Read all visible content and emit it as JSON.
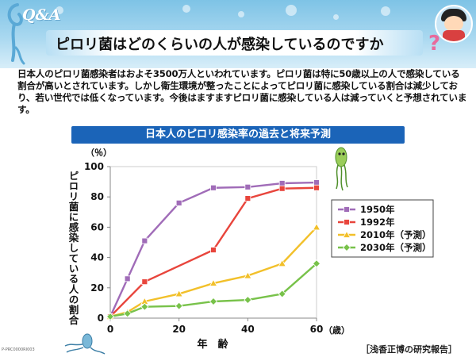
{
  "header": {
    "logo_text": "Q&A",
    "title": "ピロリ菌はどのくらいの人が感染しているのですか",
    "question_mark": "?"
  },
  "intro": {
    "text": "日本人のピロリ菌感染者はおよそ3500万人といわれています。ピロリ菌は特に50歳以上の人で感染している割合が高いとされています。しかし衛生環境が整ったことによってピロリ菌に感染している割合は減少しており、若い世代では低くなっています。今後はますますピロリ菌に感染している人は減っていくと予想されています。"
  },
  "source_note": "［浅香正博の研究報告］",
  "footer_code": "P-PRC0000RI003",
  "colors": {
    "header_blue": "#7ec3e6",
    "banner_blue": "#1b64b8",
    "series_1950": "#a06cb8",
    "series_1992": "#e8453c",
    "series_2010": "#f2c02a",
    "series_2030": "#78c24a"
  },
  "chart_data": {
    "type": "line",
    "title": "日本人のピロリ感染率の過去と将来予測",
    "xlabel": "年　齢",
    "x_unit": "（歳）",
    "ylabel": "ピロリ菌に感染している人の割合",
    "y_unit": "（％）",
    "xlim": [
      0,
      60
    ],
    "ylim": [
      0,
      100
    ],
    "x_ticks": [
      0,
      20,
      40,
      60
    ],
    "y_ticks": [
      0,
      20,
      40,
      60,
      80,
      100
    ],
    "grid": false,
    "legend_position": "right",
    "series": [
      {
        "name": "1950年",
        "color": "#a06cb8",
        "marker": "square",
        "x": [
          0,
          5,
          10,
          20,
          30,
          40,
          50,
          60
        ],
        "y": [
          1,
          26,
          51,
          76,
          86,
          86.5,
          89,
          89.5
        ]
      },
      {
        "name": "1992年",
        "color": "#e8453c",
        "marker": "square",
        "x": [
          0,
          10,
          30,
          40,
          50,
          60
        ],
        "y": [
          1,
          24,
          45,
          79,
          85.5,
          86
        ]
      },
      {
        "name": "2010年（予測）",
        "color": "#f2c02a",
        "marker": "triangle",
        "x": [
          0,
          5,
          10,
          20,
          30,
          40,
          50,
          60
        ],
        "y": [
          1,
          4,
          11,
          16,
          23,
          28,
          36,
          60
        ]
      },
      {
        "name": "2030年（予測）",
        "color": "#78c24a",
        "marker": "diamond",
        "x": [
          0,
          5,
          10,
          20,
          30,
          40,
          50,
          60
        ],
        "y": [
          1,
          3,
          7.5,
          8,
          11,
          12,
          16,
          36
        ]
      }
    ]
  }
}
